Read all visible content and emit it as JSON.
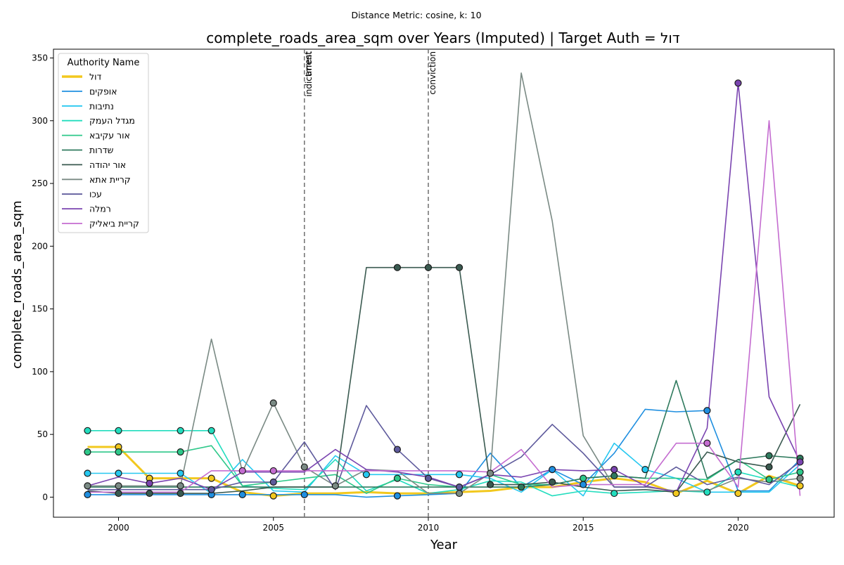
{
  "suptitle": "Distance Metric: cosine, k: 10",
  "chart_data": {
    "type": "line",
    "title": "complete_roads_area_sqm over Years (Imputed) | Target Auth = דול",
    "xlabel": "Year",
    "ylabel": "complete_roads_area_sqm",
    "xlim": [
      1997.9,
      2023.1
    ],
    "ylim": [
      -16,
      357
    ],
    "xticks": [
      2000,
      2005,
      2010,
      2015,
      2020
    ],
    "yticks": [
      0,
      50,
      100,
      150,
      200,
      250,
      300,
      350
    ],
    "grid": false,
    "legend": {
      "title": "Authority Name",
      "placement": "top-left"
    },
    "x": [
      1999,
      2000,
      2001,
      2002,
      2003,
      2004,
      2005,
      2006,
      2007,
      2008,
      2009,
      2010,
      2011,
      2012,
      2013,
      2014,
      2015,
      2016,
      2017,
      2018,
      2019,
      2020,
      2021,
      2022
    ],
    "events": [
      {
        "x": 2006,
        "labels": [
          "indictment",
          "arrest"
        ]
      },
      {
        "x": 2010,
        "labels": [
          "conviction"
        ]
      }
    ],
    "series": [
      {
        "name": "דול",
        "color": "#f2c81e",
        "width": 3,
        "values": [
          40,
          40,
          15,
          15,
          15,
          4,
          1,
          3,
          3,
          4,
          3,
          3,
          4,
          5,
          8,
          8,
          12,
          15,
          12,
          3,
          13,
          3,
          17,
          9
        ],
        "imputed": [
          2000,
          2001,
          2003,
          2005,
          2018,
          2020,
          2022
        ]
      },
      {
        "name": "אופקים",
        "color": "#1f8fe0",
        "width": 1.6,
        "values": [
          2,
          2,
          2,
          2,
          2,
          2,
          2,
          2,
          2,
          0,
          1,
          2,
          3,
          35,
          8,
          22,
          10,
          35,
          70,
          68,
          69,
          5,
          5,
          30
        ],
        "imputed": [
          1999,
          2003,
          2004,
          2006,
          2009,
          2014,
          2015,
          2019
        ]
      },
      {
        "name": "נתיבות",
        "color": "#26c8f0",
        "width": 1.6,
        "values": [
          19,
          19,
          19,
          19,
          3,
          30,
          5,
          4,
          33,
          18,
          18,
          18,
          18,
          15,
          4,
          22,
          1,
          43,
          22,
          15,
          4,
          4,
          4,
          26
        ],
        "imputed": [
          1999,
          2000,
          2002,
          2008,
          2011,
          2017
        ]
      },
      {
        "name": "מגדל העמק",
        "color": "#22ddbe",
        "width": 1.6,
        "values": [
          53,
          53,
          53,
          53,
          53,
          9,
          7,
          6,
          30,
          5,
          14,
          3,
          6,
          13,
          12,
          1,
          5,
          3,
          4,
          5,
          4,
          20,
          14,
          8
        ],
        "imputed": [
          1999,
          2000,
          2002,
          2003,
          2016,
          2019,
          2020
        ]
      },
      {
        "name": "אור עקיבא",
        "color": "#2ec88a",
        "width": 1.6,
        "values": [
          36,
          36,
          36,
          36,
          41,
          9,
          12,
          15,
          18,
          3,
          15,
          10,
          8,
          18,
          10,
          10,
          15,
          17,
          15,
          15,
          14,
          30,
          14,
          20
        ],
        "imputed": [
          1999,
          2000,
          2002,
          2009,
          2015,
          2021,
          2022
        ]
      },
      {
        "name": "שדרות",
        "color": "#2f7a5e",
        "width": 1.6,
        "values": [
          8,
          8,
          8,
          8,
          8,
          8,
          8,
          8,
          8,
          8,
          8,
          8,
          8,
          8,
          8,
          10,
          15,
          17,
          15,
          93,
          15,
          30,
          33,
          31
        ],
        "imputed": [
          2013,
          2016,
          2021,
          2022
        ]
      },
      {
        "name": "אור יהודה",
        "color": "#3a5a50",
        "width": 1.6,
        "values": [
          5,
          3,
          3,
          3,
          3,
          5,
          8,
          8,
          8,
          183,
          183,
          183,
          183,
          10,
          10,
          12,
          8,
          5,
          6,
          4,
          36,
          28,
          24,
          74
        ],
        "imputed": [
          2000,
          2001,
          2002,
          2009,
          2010,
          2011,
          2012,
          2014,
          2021
        ]
      },
      {
        "name": "קריית אתא",
        "color": "#7a8a84",
        "width": 1.6,
        "values": [
          9,
          9,
          9,
          9,
          126,
          20,
          75,
          24,
          9,
          22,
          21,
          3,
          3,
          19,
          338,
          220,
          49,
          8,
          8,
          5,
          5,
          15,
          12,
          15
        ],
        "imputed": [
          1999,
          2000,
          2002,
          2005,
          2006,
          2007,
          2011,
          2012,
          2022
        ]
      },
      {
        "name": "עכו",
        "color": "#5e5a9c",
        "width": 1.6,
        "values": [
          6,
          6,
          6,
          6,
          6,
          12,
          12,
          44,
          6,
          73,
          38,
          15,
          8,
          18,
          32,
          58,
          35,
          8,
          8,
          24,
          10,
          16,
          10,
          28
        ],
        "imputed": [
          2003,
          2005,
          2009,
          2010,
          2011
        ]
      },
      {
        "name": "רמלה",
        "color": "#7a44b0",
        "width": 1.6,
        "values": [
          9,
          16,
          11,
          15,
          6,
          20,
          20,
          20,
          38,
          22,
          20,
          16,
          8,
          18,
          16,
          22,
          21,
          22,
          9,
          4,
          55,
          330,
          80,
          28
        ],
        "imputed": [
          2001,
          2016,
          2020,
          2022
        ]
      },
      {
        "name": "קריית ביאליק",
        "color": "#c46cd0",
        "width": 1.6,
        "values": [
          4,
          4,
          4,
          4,
          21,
          21,
          21,
          21,
          21,
          21,
          21,
          21,
          21,
          20,
          38,
          8,
          10,
          10,
          10,
          43,
          43,
          8,
          300,
          1
        ],
        "imputed": [
          2004,
          2005,
          2019
        ]
      }
    ]
  }
}
